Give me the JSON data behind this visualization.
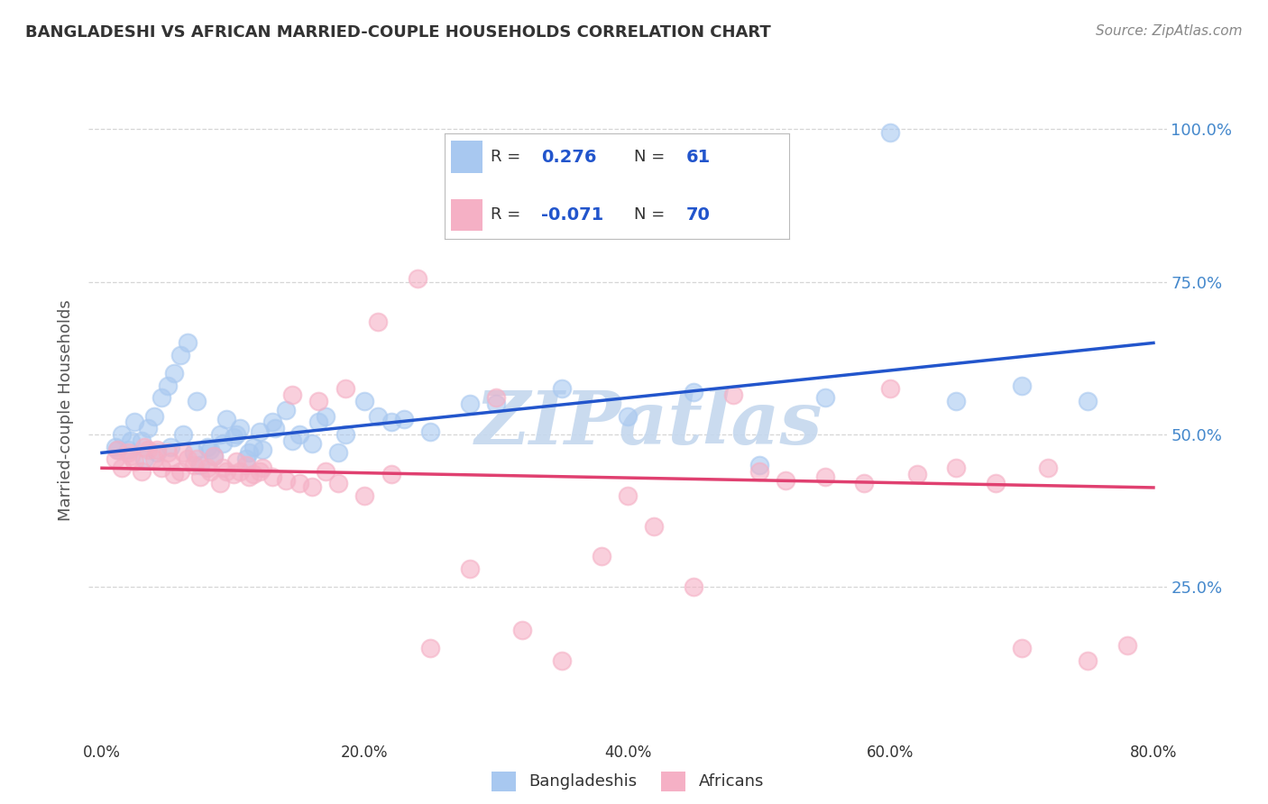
{
  "title": "BANGLADESHI VS AFRICAN MARRIED-COUPLE HOUSEHOLDS CORRELATION CHART",
  "source": "Source: ZipAtlas.com",
  "ylabel_label": "Married-couple Households",
  "legend_labels": [
    "Bangladeshis",
    "Africans"
  ],
  "blue_R": "0.276",
  "blue_N": "61",
  "pink_R": "-0.071",
  "pink_N": "70",
  "blue_color": "#A8C8F0",
  "pink_color": "#F5B0C5",
  "blue_line_color": "#2255CC",
  "pink_line_color": "#E04070",
  "watermark_text": "ZIPatlas",
  "watermark_color": "#C5D8EE",
  "title_color": "#333333",
  "source_color": "#888888",
  "ylabel_color": "#555555",
  "yaxis_label_color": "#4488CC",
  "xaxis_label_color": "#333333",
  "grid_color": "#CCCCCC",
  "blue_line_intercept": 47.0,
  "blue_line_slope": 0.225,
  "pink_line_intercept": 44.5,
  "pink_line_slope": -0.04,
  "x_min": 0,
  "x_max": 80,
  "y_min": 0,
  "y_max": 108,
  "x_ticks": [
    0,
    20,
    40,
    60,
    80
  ],
  "y_ticks": [
    25,
    50,
    75,
    100
  ],
  "blue_x": [
    1.0,
    1.5,
    2.0,
    2.5,
    3.0,
    3.5,
    4.0,
    4.5,
    5.0,
    5.5,
    6.0,
    6.5,
    7.0,
    7.5,
    8.0,
    8.5,
    9.0,
    9.5,
    10.0,
    10.5,
    11.0,
    11.5,
    12.0,
    13.0,
    14.0,
    15.0,
    16.0,
    17.0,
    18.0,
    20.0,
    22.0,
    25.0,
    30.0,
    35.0,
    40.0,
    45.0,
    50.0,
    55.0,
    60.0,
    65.0,
    70.0,
    75.0,
    1.2,
    2.2,
    3.2,
    4.2,
    5.2,
    6.2,
    7.2,
    8.2,
    9.2,
    10.2,
    11.2,
    12.2,
    13.2,
    14.5,
    16.5,
    18.5,
    21.0,
    23.0,
    28.0
  ],
  "blue_y": [
    48.0,
    50.0,
    47.5,
    52.0,
    49.0,
    51.0,
    53.0,
    56.0,
    58.0,
    60.0,
    63.0,
    65.0,
    47.0,
    45.0,
    48.0,
    46.5,
    50.0,
    52.5,
    49.5,
    51.0,
    46.0,
    48.0,
    50.5,
    52.0,
    54.0,
    50.0,
    48.5,
    53.0,
    47.0,
    55.5,
    52.0,
    50.5,
    55.0,
    57.5,
    53.0,
    57.0,
    45.0,
    56.0,
    99.5,
    55.5,
    58.0,
    55.5,
    47.5,
    49.0,
    46.0,
    47.0,
    48.0,
    50.0,
    55.5,
    47.5,
    48.5,
    50.0,
    47.0,
    47.5,
    51.0,
    49.0,
    52.0,
    50.0,
    53.0,
    52.5,
    55.0
  ],
  "pink_x": [
    1.0,
    1.5,
    2.0,
    2.5,
    3.0,
    3.5,
    4.0,
    4.5,
    5.0,
    5.5,
    6.0,
    6.5,
    7.0,
    7.5,
    8.0,
    8.5,
    9.0,
    9.5,
    10.0,
    10.5,
    11.0,
    11.5,
    12.0,
    13.0,
    14.0,
    15.0,
    16.0,
    17.0,
    18.0,
    20.0,
    22.0,
    25.0,
    28.0,
    30.0,
    32.0,
    35.0,
    38.0,
    40.0,
    42.0,
    45.0,
    48.0,
    50.0,
    52.0,
    55.0,
    58.0,
    60.0,
    62.0,
    65.0,
    68.0,
    70.0,
    72.0,
    75.0,
    78.0,
    1.2,
    2.2,
    3.2,
    4.2,
    5.2,
    6.2,
    7.2,
    8.2,
    9.2,
    10.2,
    11.2,
    12.2,
    14.5,
    16.5,
    18.5,
    21.0,
    24.0
  ],
  "pink_y": [
    46.0,
    44.5,
    47.0,
    45.5,
    44.0,
    47.5,
    46.0,
    44.5,
    47.0,
    43.5,
    44.0,
    46.0,
    45.0,
    43.0,
    44.5,
    46.5,
    42.0,
    44.0,
    43.5,
    44.0,
    45.0,
    43.5,
    44.0,
    43.0,
    42.5,
    42.0,
    41.5,
    44.0,
    42.0,
    40.0,
    43.5,
    15.0,
    28.0,
    56.0,
    18.0,
    13.0,
    30.0,
    40.0,
    35.0,
    25.0,
    56.5,
    44.0,
    42.5,
    43.0,
    42.0,
    57.5,
    43.5,
    44.5,
    42.0,
    15.0,
    44.5,
    13.0,
    15.5,
    47.5,
    46.5,
    48.0,
    47.5,
    45.5,
    47.0,
    46.0,
    44.0,
    44.5,
    45.5,
    43.0,
    44.5,
    56.5,
    55.5,
    57.5,
    68.5,
    75.5
  ]
}
